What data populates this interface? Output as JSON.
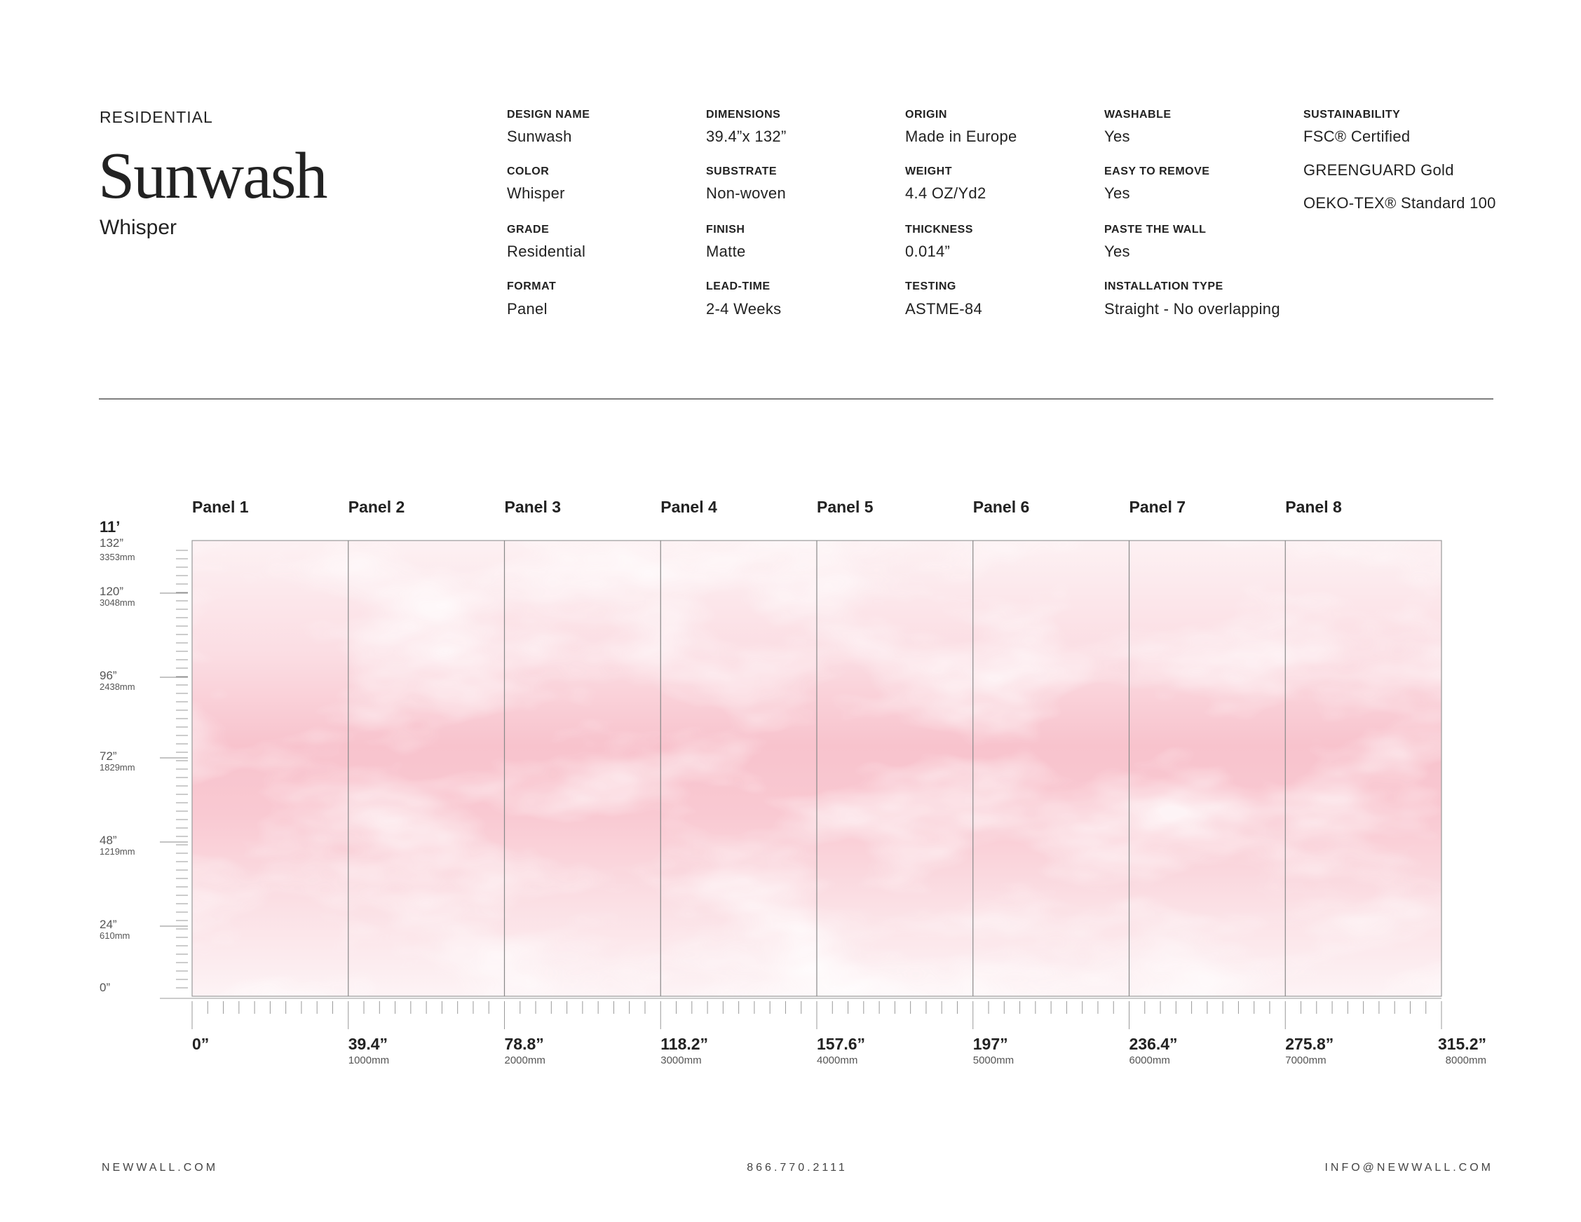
{
  "header": {
    "category": "RESIDENTIAL",
    "title": "Sunwash",
    "color_name": "Whisper"
  },
  "specs": [
    [
      {
        "label": "DESIGN NAME",
        "value": "Sunwash"
      },
      {
        "label": "COLOR",
        "value": "Whisper"
      },
      {
        "label": "GRADE",
        "value": "Residential"
      },
      {
        "label": "FORMAT",
        "value": "Panel"
      }
    ],
    [
      {
        "label": "DIMENSIONS",
        "value": "39.4”x 132”"
      },
      {
        "label": "SUBSTRATE",
        "value": "Non-woven"
      },
      {
        "label": "FINISH",
        "value": "Matte"
      },
      {
        "label": "LEAD-TIME",
        "value": "2-4 Weeks"
      }
    ],
    [
      {
        "label": "ORIGIN",
        "value": "Made in Europe"
      },
      {
        "label": "WEIGHT",
        "value": "4.4 OZ/Yd2"
      },
      {
        "label": "THICKNESS",
        "value": "0.014”"
      },
      {
        "label": "TESTING",
        "value": "ASTME-84"
      }
    ],
    [
      {
        "label": "WASHABLE",
        "value": "Yes"
      },
      {
        "label": "EASY TO REMOVE",
        "value": "Yes"
      },
      {
        "label": "PASTE THE WALL",
        "value": "Yes"
      },
      {
        "label": "INSTALLATION TYPE",
        "value": "Straight - No overlapping"
      }
    ]
  ],
  "sustainability": {
    "label": "SUSTAINABILITY",
    "items": [
      "FSC® Certified",
      "GREENGUARD Gold",
      "OEKO-TEX® Standard 100"
    ]
  },
  "panels": [
    "Panel 1",
    "Panel 2",
    "Panel 3",
    "Panel 4",
    "Panel 5",
    "Panel 6",
    "Panel 7",
    "Panel 8"
  ],
  "height_scale": {
    "top": "11’",
    "marks": [
      {
        "inches": "132”",
        "mm": "3353mm"
      },
      {
        "inches": "120”",
        "mm": "3048mm"
      },
      {
        "inches": "96”",
        "mm": "2438mm"
      },
      {
        "inches": "72”",
        "mm": "1829mm"
      },
      {
        "inches": "48”",
        "mm": "1219mm"
      },
      {
        "inches": "24”",
        "mm": "610mm"
      },
      {
        "inches": "0”"
      }
    ]
  },
  "width_scale": [
    {
      "inches": "0”"
    },
    {
      "inches": "39.4”",
      "mm": "1000mm"
    },
    {
      "inches": "78.8”",
      "mm": "2000mm"
    },
    {
      "inches": "118.2”",
      "mm": "3000mm"
    },
    {
      "inches": "157.6”",
      "mm": "4000mm"
    },
    {
      "inches": "197”",
      "mm": "5000mm"
    },
    {
      "inches": "236.4”",
      "mm": "6000mm"
    },
    {
      "inches": "275.8”",
      "mm": "7000mm"
    },
    {
      "inches": "315.2”",
      "mm": "8000mm"
    }
  ],
  "footer": {
    "website": "NEWWALL.COM",
    "phone": "866.770.2111",
    "email": "INFO@NEWWALL.COM"
  }
}
